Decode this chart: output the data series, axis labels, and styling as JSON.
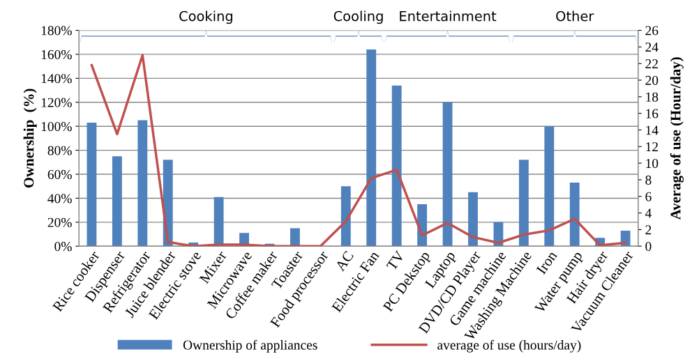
{
  "chart_data": {
    "type": "bar",
    "categories": [
      "Rice cooker",
      "Dispenser",
      "Refrigerator",
      "Juice blender",
      "Electric stove",
      "Mixer",
      "Microwave",
      "Coffee maker",
      "Toaster",
      "Food processor",
      "AC",
      "Electric Fan",
      "TV",
      "PC Dekstop",
      "Laptop",
      "DVD/CD Player",
      "Game machine",
      "Washing Machine",
      "Iron",
      "Water pump",
      "Hair dryer",
      "Vacuum Cleaner"
    ],
    "series": [
      {
        "name": "Ownership of appliances",
        "color": "#4f81bd",
        "values": [
          103,
          75,
          105,
          72,
          3,
          41,
          11,
          2,
          15,
          0,
          50,
          164,
          134,
          35,
          120,
          45,
          20,
          72,
          100,
          53,
          7,
          13
        ]
      },
      {
        "name": "average of use (hours/day)",
        "type": "line",
        "axis": "y2",
        "color": "#c0504d",
        "values": [
          21.8,
          13.5,
          23,
          0.5,
          0,
          0.2,
          0.2,
          0,
          0,
          0,
          3,
          8.2,
          9.2,
          1.3,
          2.8,
          1.1,
          0.4,
          1.4,
          1.9,
          3.3,
          0.1,
          0.4
        ]
      }
    ],
    "ylabel": "Ownership  (%)",
    "y2label": "Average of use (Hour/day)",
    "ylim": [
      0,
      180
    ],
    "yticks": [
      {
        "value": 0,
        "label": "0%"
      },
      {
        "value": 20,
        "label": "20%"
      },
      {
        "value": 40,
        "label": "40%"
      },
      {
        "value": 60,
        "label": "60%"
      },
      {
        "value": 80,
        "label": "80%"
      },
      {
        "value": 100,
        "label": "100%"
      },
      {
        "value": 120,
        "label": "120%"
      },
      {
        "value": 140,
        "label": "140%"
      },
      {
        "value": 160,
        "label": "160%"
      },
      {
        "value": 180,
        "label": "180%"
      }
    ],
    "y2lim": [
      0,
      26
    ],
    "y2ticks": [
      0,
      2,
      4,
      6,
      8,
      10,
      12,
      14,
      16,
      18,
      20,
      22,
      24,
      26
    ],
    "annotations": [
      "Cooking",
      "Cooling",
      "Entertainment",
      "Other"
    ],
    "grid": "y",
    "legend": "bottom",
    "marker": "none",
    "line_style": "solid"
  }
}
